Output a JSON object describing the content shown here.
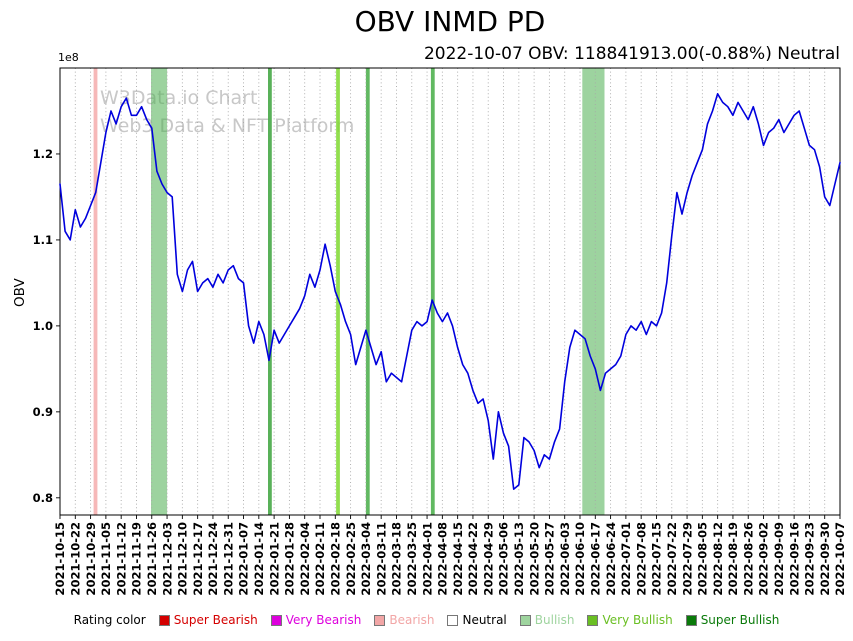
{
  "chart_data": {
    "type": "line",
    "title": "OBV INMD PD",
    "subtitle": "2022-10-07 OBV: 118841913.00(-0.88%) Neutral",
    "ylabel": "OBV",
    "y_offset_label": "1e8",
    "values_scale": "1e8",
    "ylim": [
      0.78,
      1.3
    ],
    "yticks": [
      0.8,
      0.9,
      1.0,
      1.1,
      1.2
    ],
    "grid": "vertical dotted gridlines at weekly ticks",
    "legend_position": "bottom",
    "line_color": "#0000dd",
    "watermark": {
      "line1": "W3Data.io Chart",
      "line2": "Web3 Data & NFT Platform"
    },
    "x_tick_labels": [
      "2021-10-15",
      "2021-10-22",
      "2021-10-29",
      "2021-11-05",
      "2021-11-12",
      "2021-11-19",
      "2021-11-26",
      "2021-12-03",
      "2021-12-10",
      "2021-12-17",
      "2021-12-24",
      "2021-12-31",
      "2022-01-07",
      "2022-01-14",
      "2022-01-21",
      "2022-01-28",
      "2022-02-04",
      "2022-02-11",
      "2022-02-18",
      "2022-02-25",
      "2022-03-04",
      "2022-03-11",
      "2022-03-18",
      "2022-03-25",
      "2022-04-01",
      "2022-04-08",
      "2022-04-15",
      "2022-04-22",
      "2022-04-29",
      "2022-05-06",
      "2022-05-13",
      "2022-05-20",
      "2022-05-27",
      "2022-06-03",
      "2022-06-10",
      "2022-06-17",
      "2022-06-24",
      "2022-07-01",
      "2022-07-08",
      "2022-07-15",
      "2022-07-22",
      "2022-07-29",
      "2022-08-05",
      "2022-08-12",
      "2022-08-19",
      "2022-08-26",
      "2022-09-02",
      "2022-09-09",
      "2022-09-16",
      "2022-09-23",
      "2022-09-30",
      "2022-10-07"
    ],
    "series": [
      {
        "name": "OBV",
        "values": [
          1.165,
          1.11,
          1.1,
          1.135,
          1.115,
          1.125,
          1.14,
          1.155,
          1.19,
          1.225,
          1.25,
          1.235,
          1.255,
          1.265,
          1.245,
          1.245,
          1.255,
          1.24,
          1.23,
          1.18,
          1.165,
          1.155,
          1.15,
          1.06,
          1.04,
          1.065,
          1.075,
          1.04,
          1.05,
          1.055,
          1.045,
          1.06,
          1.05,
          1.065,
          1.07,
          1.055,
          1.05,
          1.0,
          0.98,
          1.005,
          0.99,
          0.96,
          0.995,
          0.98,
          0.99,
          1.0,
          1.01,
          1.02,
          1.035,
          1.06,
          1.045,
          1.065,
          1.095,
          1.07,
          1.04,
          1.025,
          1.005,
          0.99,
          0.955,
          0.975,
          0.995,
          0.975,
          0.955,
          0.97,
          0.935,
          0.945,
          0.94,
          0.935,
          0.965,
          0.995,
          1.005,
          1.0,
          1.005,
          1.03,
          1.015,
          1.005,
          1.015,
          1.0,
          0.975,
          0.955,
          0.945,
          0.925,
          0.91,
          0.915,
          0.89,
          0.845,
          0.9,
          0.875,
          0.86,
          0.81,
          0.815,
          0.87,
          0.865,
          0.855,
          0.835,
          0.85,
          0.845,
          0.865,
          0.88,
          0.935,
          0.975,
          0.995,
          0.99,
          0.985,
          0.965,
          0.95,
          0.925,
          0.945,
          0.95,
          0.955,
          0.965,
          0.99,
          1.0,
          0.995,
          1.005,
          0.99,
          1.005,
          1.0,
          1.015,
          1.05,
          1.105,
          1.155,
          1.13,
          1.155,
          1.175,
          1.19,
          1.205,
          1.235,
          1.25,
          1.27,
          1.26,
          1.255,
          1.245,
          1.26,
          1.25,
          1.24,
          1.255,
          1.235,
          1.21,
          1.225,
          1.23,
          1.24,
          1.225,
          1.235,
          1.245,
          1.25,
          1.23,
          1.21,
          1.205,
          1.185,
          1.15,
          1.14,
          1.165,
          1.19
        ]
      }
    ],
    "bands": [
      {
        "start": 2.2,
        "end": 2.45,
        "color": "#f5b0b0",
        "opacity": 0.9
      },
      {
        "start": 5.95,
        "end": 7.0,
        "color": "#4caf50",
        "opacity": 0.55
      },
      {
        "start": 13.6,
        "end": 13.85,
        "color": "#2f9e2f",
        "opacity": 0.8
      },
      {
        "start": 18.05,
        "end": 18.3,
        "color": "#7fd82f",
        "opacity": 0.85
      },
      {
        "start": 20.0,
        "end": 20.25,
        "color": "#3aa83a",
        "opacity": 0.8
      },
      {
        "start": 24.25,
        "end": 24.5,
        "color": "#3aa83a",
        "opacity": 0.8
      },
      {
        "start": 34.15,
        "end": 35.6,
        "color": "#4caf50",
        "opacity": 0.55
      }
    ],
    "legend": {
      "label": "Rating color",
      "items": [
        {
          "label": "Super Bearish",
          "swatch": "#d40000",
          "text": "#d40000"
        },
        {
          "label": "Very Bearish",
          "swatch": "#dd00dd",
          "text": "#dd00dd"
        },
        {
          "label": "Bearish",
          "swatch": "#f2a6a6",
          "text": "#f2a6a6"
        },
        {
          "label": "Neutral",
          "swatch": "#ffffff",
          "text": "#000000"
        },
        {
          "label": "Bullish",
          "swatch": "#9ed49e",
          "text": "#9ed49e"
        },
        {
          "label": "Very Bullish",
          "swatch": "#6abf23",
          "text": "#6abf23"
        },
        {
          "label": "Super Bullish",
          "swatch": "#0a7a0a",
          "text": "#0a7a0a"
        }
      ]
    }
  }
}
